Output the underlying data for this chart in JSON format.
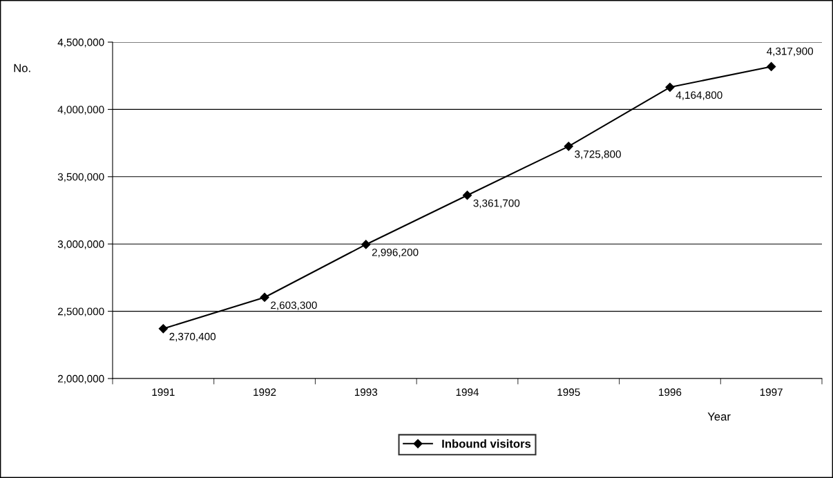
{
  "chart_data": {
    "type": "line",
    "xlabel": "Year",
    "ylabel": "No.",
    "categories": [
      "1991",
      "1992",
      "1993",
      "1994",
      "1995",
      "1996",
      "1997"
    ],
    "series": [
      {
        "name": "Inbound visitors",
        "color": "#000000",
        "values": [
          2370400,
          2603300,
          2996200,
          3361700,
          3725800,
          4164800,
          4317900
        ],
        "value_labels": [
          "2,370,400",
          "2,603,300",
          "2,996,200",
          "3,361,700",
          "3,725,800",
          "4,164,800",
          "4,317,900"
        ]
      }
    ],
    "ylim": [
      2000000,
      4500000
    ],
    "yticks": [
      {
        "value": 2000000,
        "label": "2,000,000"
      },
      {
        "value": 2500000,
        "label": "2,500,000"
      },
      {
        "value": 3000000,
        "label": "3,000,000"
      },
      {
        "value": 3500000,
        "label": "3,500,000"
      },
      {
        "value": 4000000,
        "label": "4,000,000"
      },
      {
        "value": 4500000,
        "label": "4,500,000"
      }
    ],
    "grid": "y",
    "legend": "bottom",
    "marker": "diamond",
    "line_style": "solid"
  }
}
